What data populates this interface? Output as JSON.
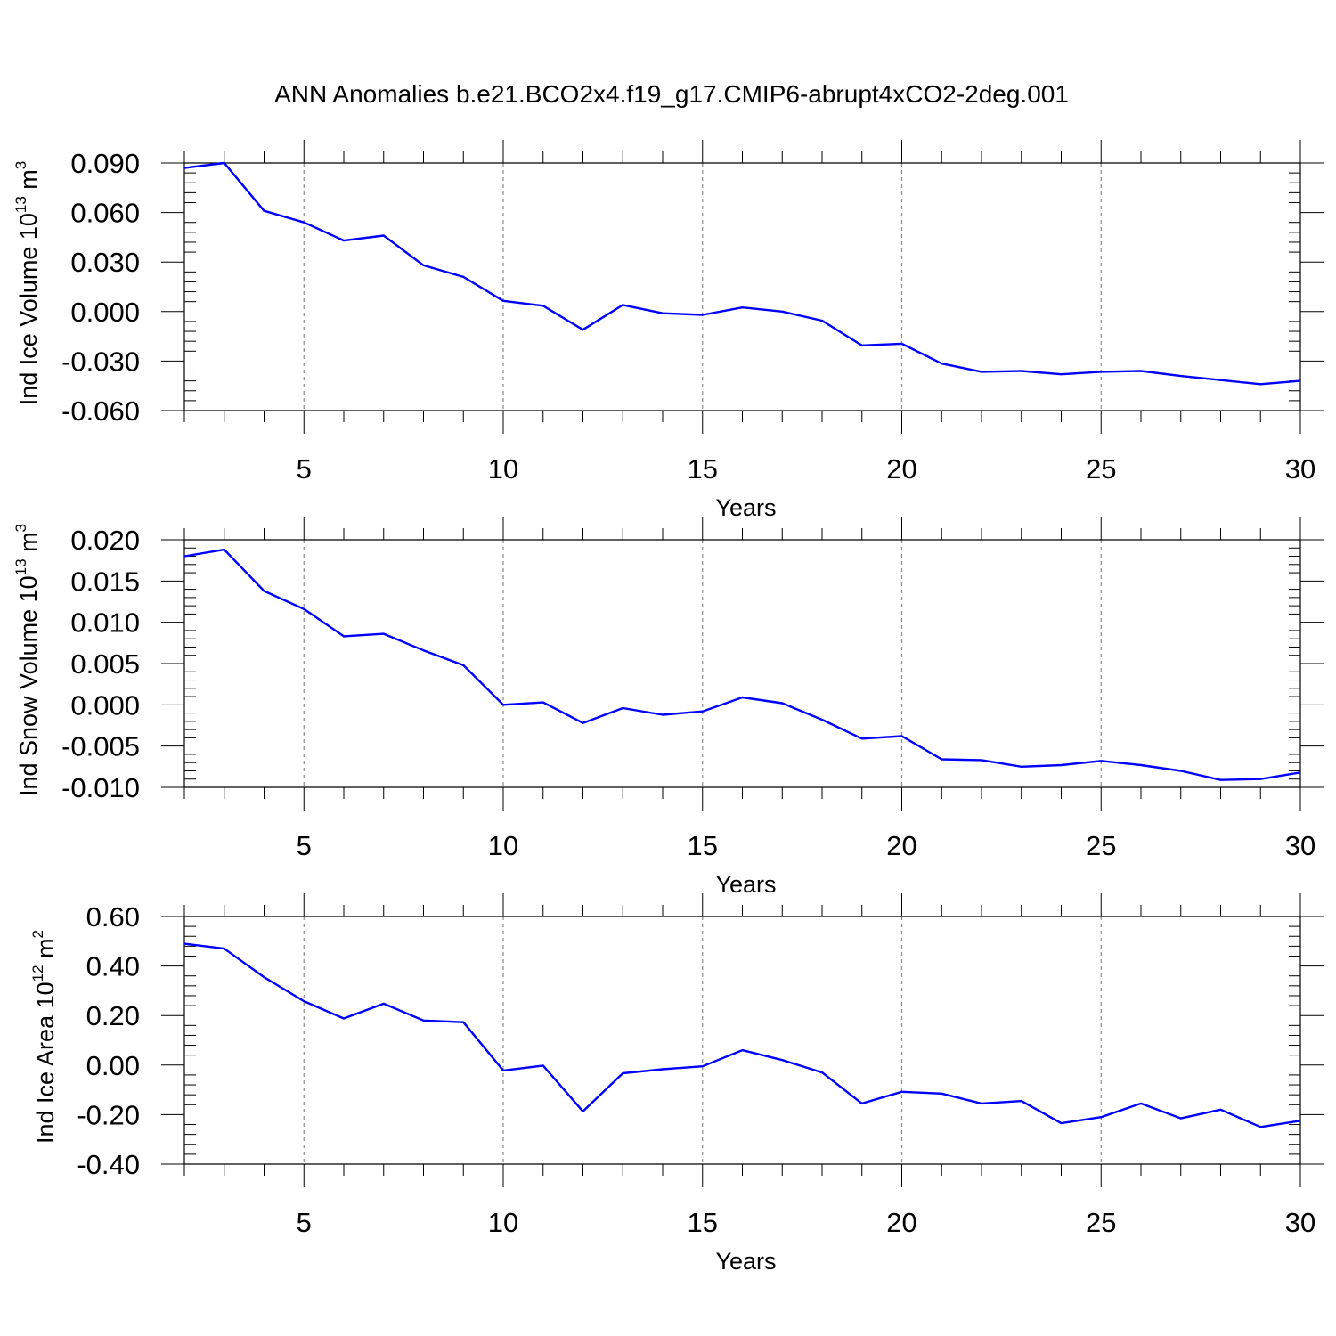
{
  "title": "ANN Anomalies b.e21.BCO2x4.f19_g17.CMIP6-abrupt4xCO2-2deg.001",
  "line_color": "#0000ff",
  "chart_data": [
    {
      "type": "line",
      "ylabel_main": "Ind Ice Volume 10",
      "ylabel_exp": "13",
      "ylabel_unit": " m",
      "ylabel_unit_exp": "3",
      "xlabel": "Years",
      "xlim": [
        2,
        30
      ],
      "ylim": [
        -0.06,
        0.09
      ],
      "xticks": [
        5,
        10,
        15,
        20,
        25,
        30
      ],
      "yticks": [
        -0.06,
        -0.03,
        0.0,
        0.03,
        0.06,
        0.09
      ],
      "ytick_labels": [
        "-0.060",
        "-0.030",
        "0.000",
        "0.030",
        "0.060",
        "0.090"
      ],
      "x": [
        2,
        3,
        4,
        5,
        6,
        7,
        8,
        9,
        10,
        11,
        12,
        13,
        14,
        15,
        16,
        17,
        18,
        19,
        20,
        21,
        22,
        23,
        24,
        25,
        26,
        27,
        28,
        29,
        30
      ],
      "series": [
        {
          "values": [
            0.087,
            0.09,
            0.061,
            0.054,
            0.043,
            0.046,
            0.028,
            0.021,
            0.0065,
            0.0035,
            -0.011,
            0.004,
            -0.001,
            -0.002,
            0.0025,
            0.0,
            -0.0055,
            -0.0205,
            -0.0195,
            -0.0315,
            -0.0365,
            -0.036,
            -0.038,
            -0.0365,
            -0.036,
            -0.039,
            -0.0415,
            -0.044,
            -0.042
          ]
        }
      ]
    },
    {
      "type": "line",
      "ylabel_main": "Ind Snow Volume 10",
      "ylabel_exp": "13",
      "ylabel_unit": " m",
      "ylabel_unit_exp": "3",
      "xlabel": "Years",
      "xlim": [
        2,
        30
      ],
      "ylim": [
        -0.01,
        0.02
      ],
      "xticks": [
        5,
        10,
        15,
        20,
        25,
        30
      ],
      "yticks": [
        -0.01,
        -0.005,
        0.0,
        0.005,
        0.01,
        0.015,
        0.02
      ],
      "ytick_labels": [
        "-0.010",
        "-0.005",
        "0.000",
        "0.005",
        "0.010",
        "0.015",
        "0.020"
      ],
      "x": [
        2,
        3,
        4,
        5,
        6,
        7,
        8,
        9,
        10,
        11,
        12,
        13,
        14,
        15,
        16,
        17,
        18,
        19,
        20,
        21,
        22,
        23,
        24,
        25,
        26,
        27,
        28,
        29,
        30
      ],
      "series": [
        {
          "values": [
            0.018,
            0.0188,
            0.0138,
            0.0116,
            0.0083,
            0.0086,
            0.0066,
            0.0048,
            0.0,
            0.0003,
            -0.0022,
            -0.0004,
            -0.0012,
            -0.0008,
            0.0009,
            0.0002,
            -0.0018,
            -0.0041,
            -0.0038,
            -0.0066,
            -0.0067,
            -0.0075,
            -0.0073,
            -0.0068,
            -0.0073,
            -0.008,
            -0.0091,
            -0.009,
            -0.0082
          ]
        }
      ]
    },
    {
      "type": "line",
      "ylabel_main": "Ind Ice Area 10",
      "ylabel_exp": "12",
      "ylabel_unit": " m",
      "ylabel_unit_exp": "2",
      "xlabel": "Years",
      "xlim": [
        2,
        30
      ],
      "ylim": [
        -0.4,
        0.6
      ],
      "xticks": [
        5,
        10,
        15,
        20,
        25,
        30
      ],
      "yticks": [
        -0.4,
        -0.2,
        0.0,
        0.2,
        0.4,
        0.6
      ],
      "ytick_labels": [
        "-0.40",
        "-0.20",
        "0.00",
        "0.20",
        "0.40",
        "0.60"
      ],
      "x": [
        2,
        3,
        4,
        5,
        6,
        7,
        8,
        9,
        10,
        11,
        12,
        13,
        14,
        15,
        16,
        17,
        18,
        19,
        20,
        21,
        22,
        23,
        24,
        25,
        26,
        27,
        28,
        29,
        30
      ],
      "series": [
        {
          "values": [
            0.49,
            0.47,
            0.355,
            0.258,
            0.188,
            0.248,
            0.18,
            0.173,
            -0.022,
            -0.002,
            -0.187,
            -0.033,
            -0.017,
            -0.005,
            0.06,
            0.02,
            -0.03,
            -0.155,
            -0.108,
            -0.115,
            -0.155,
            -0.145,
            -0.235,
            -0.21,
            -0.155,
            -0.215,
            -0.18,
            -0.25,
            -0.225
          ]
        }
      ]
    }
  ]
}
